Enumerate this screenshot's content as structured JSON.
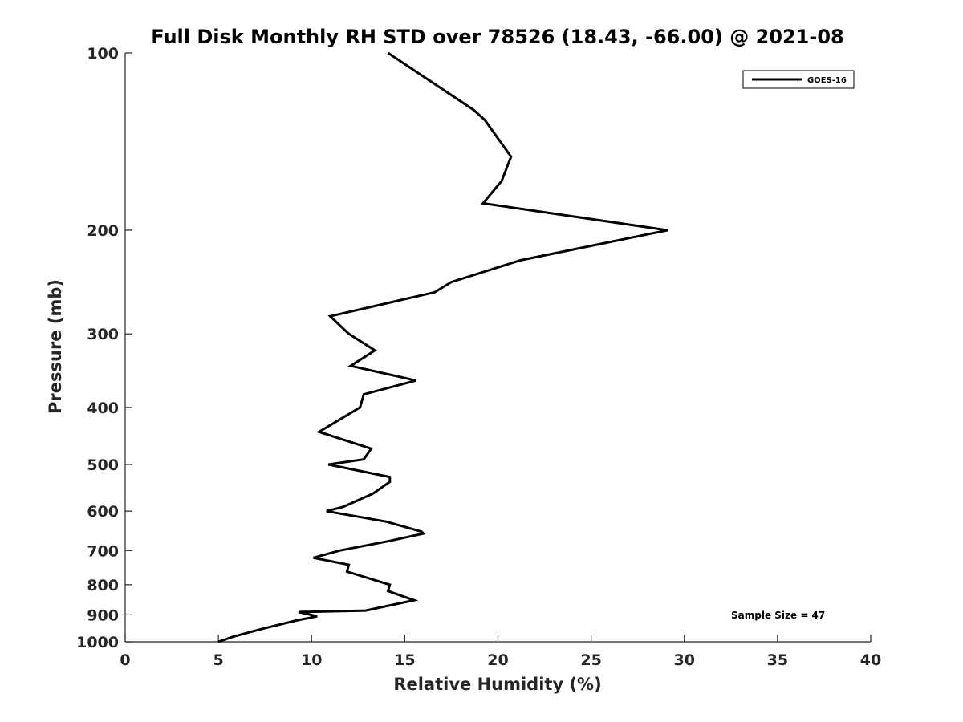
{
  "chart_data": {
    "type": "line",
    "title": "Full Disk Monthly RH STD over 78526 (18.43, -66.00) @ 2021-08",
    "xlabel": "Relative Humidity (%)",
    "ylabel": "Pressure (mb)",
    "xlim": [
      0,
      40
    ],
    "ylim": [
      100,
      1000
    ],
    "y_scale": "log",
    "y_reversed": true,
    "grid": false,
    "legend_position": "top-right",
    "x_ticks": [
      "0",
      "5",
      "10",
      "15",
      "20",
      "25",
      "30",
      "35",
      "40"
    ],
    "y_ticks": [
      "100",
      "200",
      "300",
      "400",
      "500",
      "600",
      "700",
      "800",
      "900",
      "1000"
    ],
    "series": [
      {
        "name": "GOES-16",
        "color": "#000000",
        "points": [
          [
            14.1,
            100
          ],
          [
            18.7,
            125
          ],
          [
            19.3,
            130
          ],
          [
            20.7,
            150
          ],
          [
            20.2,
            165
          ],
          [
            19.2,
            180
          ],
          [
            29.1,
            200
          ],
          [
            21.2,
            225
          ],
          [
            17.5,
            245
          ],
          [
            16.6,
            255
          ],
          [
            11.0,
            280
          ],
          [
            12.0,
            300
          ],
          [
            13.4,
            320
          ],
          [
            12.1,
            340
          ],
          [
            15.6,
            360
          ],
          [
            12.8,
            380
          ],
          [
            12.6,
            400
          ],
          [
            10.4,
            440
          ],
          [
            13.2,
            470
          ],
          [
            12.8,
            490
          ],
          [
            10.9,
            500
          ],
          [
            14.2,
            525
          ],
          [
            14.2,
            535
          ],
          [
            13.3,
            560
          ],
          [
            11.7,
            590
          ],
          [
            10.8,
            600
          ],
          [
            14.0,
            625
          ],
          [
            15.9,
            650
          ],
          [
            16.0,
            655
          ],
          [
            14.1,
            675
          ],
          [
            11.5,
            700
          ],
          [
            10.1,
            720
          ],
          [
            12.0,
            740
          ],
          [
            11.9,
            760
          ],
          [
            14.2,
            800
          ],
          [
            14.1,
            820
          ],
          [
            15.5,
            850
          ],
          [
            12.9,
            885
          ],
          [
            9.3,
            890
          ],
          [
            10.3,
            905
          ],
          [
            9.2,
            920
          ],
          [
            7.4,
            950
          ],
          [
            5.8,
            980
          ],
          [
            5.0,
            1000
          ]
        ]
      }
    ],
    "annotation": "Sample Size = 47"
  }
}
